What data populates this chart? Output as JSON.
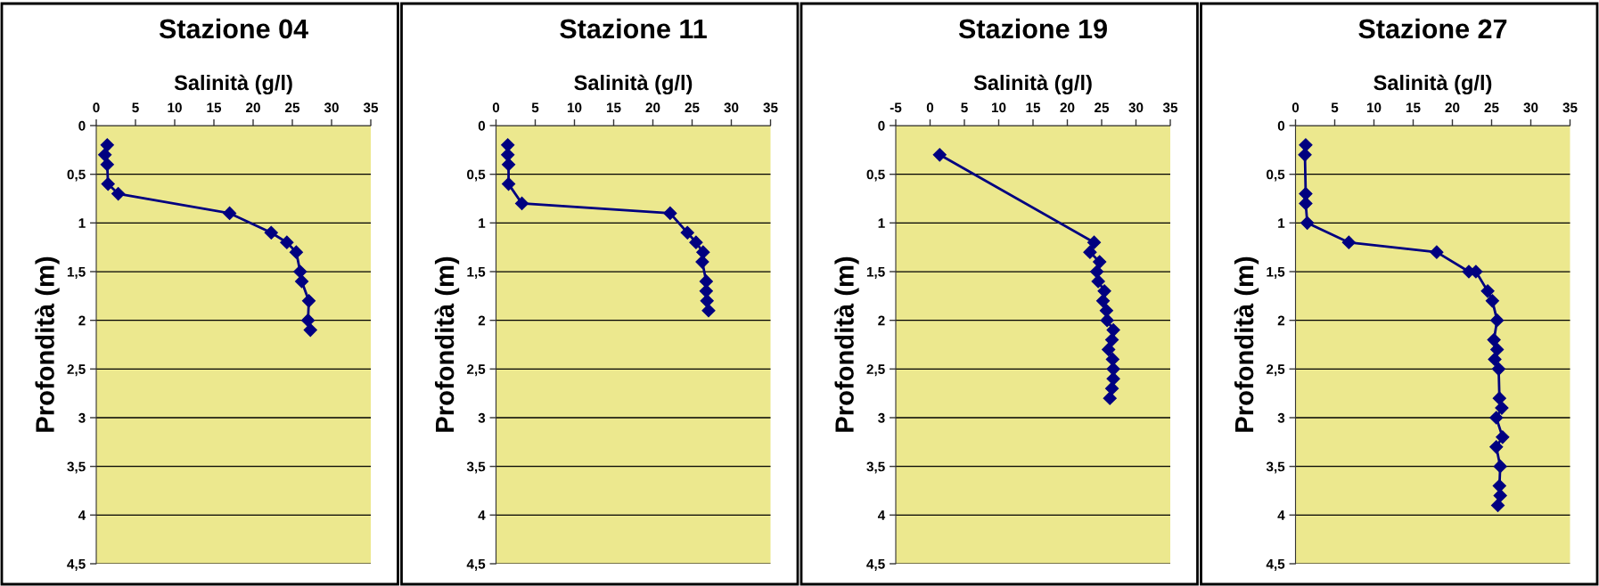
{
  "chart_data": [
    {
      "type": "line",
      "title": "Stazione 04",
      "xlabel": "Salinità (g/l)",
      "ylabel": "Profondità (m)",
      "marker": "diamond",
      "grid": "y",
      "xlim": [
        0,
        35
      ],
      "xticks": [
        0,
        5,
        10,
        15,
        20,
        25,
        30,
        35
      ],
      "ylim": [
        4.5,
        0
      ],
      "yticks": [
        0,
        {
          "value": 0.5,
          "label": "0,5"
        },
        1,
        {
          "value": 1.5,
          "label": "1,5"
        },
        2,
        {
          "value": 2.5,
          "label": "2,5"
        },
        3,
        {
          "value": 3.5,
          "label": "3,5"
        },
        4,
        {
          "value": 4.5,
          "label": "4,5"
        }
      ],
      "series": [
        {
          "color": "#000080",
          "x": [
            1.4,
            1.1,
            1.4,
            1.5,
            2.8,
            17.0,
            22.3,
            24.3,
            25.5,
            26.0,
            26.2,
            27.1,
            27.0,
            27.3
          ],
          "values": [
            0.2,
            0.3,
            0.4,
            0.6,
            0.7,
            0.9,
            1.1,
            1.2,
            1.3,
            1.5,
            1.6,
            1.8,
            2.0,
            2.1
          ]
        }
      ]
    },
    {
      "type": "line",
      "title": "Stazione 11",
      "xlabel": "Salinità (g/l)",
      "ylabel": "Profondità (m)",
      "marker": "diamond",
      "grid": "y",
      "xlim": [
        0,
        35
      ],
      "xticks": [
        0,
        5,
        10,
        15,
        20,
        25,
        30,
        35
      ],
      "ylim": [
        4.5,
        0
      ],
      "yticks": [
        0,
        {
          "value": 0.5,
          "label": "0,5"
        },
        1,
        {
          "value": 1.5,
          "label": "1,5"
        },
        2,
        {
          "value": 2.5,
          "label": "2,5"
        },
        3,
        {
          "value": 3.5,
          "label": "3,5"
        },
        4,
        {
          "value": 4.5,
          "label": "4,5"
        }
      ],
      "series": [
        {
          "color": "#000080",
          "x": [
            1.5,
            1.5,
            1.6,
            1.6,
            3.3,
            22.2,
            24.4,
            25.5,
            26.4,
            26.3,
            26.8,
            26.8,
            26.9,
            27.1
          ],
          "values": [
            0.2,
            0.3,
            0.4,
            0.6,
            0.8,
            0.9,
            1.1,
            1.2,
            1.3,
            1.4,
            1.6,
            1.7,
            1.8,
            1.9
          ]
        }
      ]
    },
    {
      "type": "line",
      "title": "Stazione 19",
      "xlabel": "Salinità (g/l)",
      "ylabel": "Profondità (m)",
      "marker": "diamond",
      "grid": "y",
      "xlim": [
        -5,
        35
      ],
      "xticks": [
        -5,
        0,
        5,
        10,
        15,
        20,
        25,
        30,
        35
      ],
      "ylim": [
        4.5,
        0
      ],
      "yticks": [
        0,
        {
          "value": 0.5,
          "label": "0,5"
        },
        1,
        {
          "value": 1.5,
          "label": "1,5"
        },
        2,
        {
          "value": 2.5,
          "label": "2,5"
        },
        3,
        {
          "value": 3.5,
          "label": "3,5"
        },
        4,
        {
          "value": 4.5,
          "label": "4,5"
        }
      ],
      "series": [
        {
          "color": "#000080",
          "x": [
            1.4,
            23.9,
            23.3,
            24.7,
            24.3,
            24.5,
            25.4,
            25.2,
            25.7,
            25.8,
            26.7,
            26.5,
            26.0,
            26.6,
            26.7,
            26.7,
            26.5,
            26.2
          ],
          "values": [
            0.3,
            1.2,
            1.3,
            1.4,
            1.5,
            1.6,
            1.7,
            1.8,
            1.9,
            2.0,
            2.1,
            2.2,
            2.3,
            2.4,
            2.5,
            2.6,
            2.7,
            2.8
          ]
        }
      ]
    },
    {
      "type": "line",
      "title": "Stazione 27",
      "xlabel": "Salinità (g/l)",
      "ylabel": "Profondità (m)",
      "marker": "diamond",
      "grid": "y",
      "xlim": [
        0,
        35
      ],
      "xticks": [
        0,
        5,
        10,
        15,
        20,
        25,
        30,
        35
      ],
      "ylim": [
        4.5,
        0
      ],
      "yticks": [
        0,
        {
          "value": 0.5,
          "label": "0,5"
        },
        1,
        {
          "value": 1.5,
          "label": "1,5"
        },
        2,
        {
          "value": 2.5,
          "label": "2,5"
        },
        3,
        {
          "value": 3.5,
          "label": "3,5"
        },
        4,
        {
          "value": 4.5,
          "label": "4,5"
        }
      ],
      "series": [
        {
          "color": "#000080",
          "x": [
            1.3,
            1.2,
            1.3,
            1.3,
            1.5,
            6.8,
            18.0,
            22.1,
            23.0,
            24.5,
            25.1,
            25.7,
            25.3,
            25.7,
            25.4,
            25.9,
            26.0,
            26.3,
            25.6,
            26.4,
            25.6,
            26.1,
            26.0,
            26.1,
            25.8
          ],
          "values": [
            0.2,
            0.3,
            0.7,
            0.8,
            1.0,
            1.2,
            1.3,
            1.5,
            1.5,
            1.7,
            1.8,
            2.0,
            2.2,
            2.3,
            2.4,
            2.5,
            2.8,
            2.9,
            3.0,
            3.2,
            3.3,
            3.5,
            3.7,
            3.8,
            3.9
          ]
        }
      ]
    }
  ]
}
